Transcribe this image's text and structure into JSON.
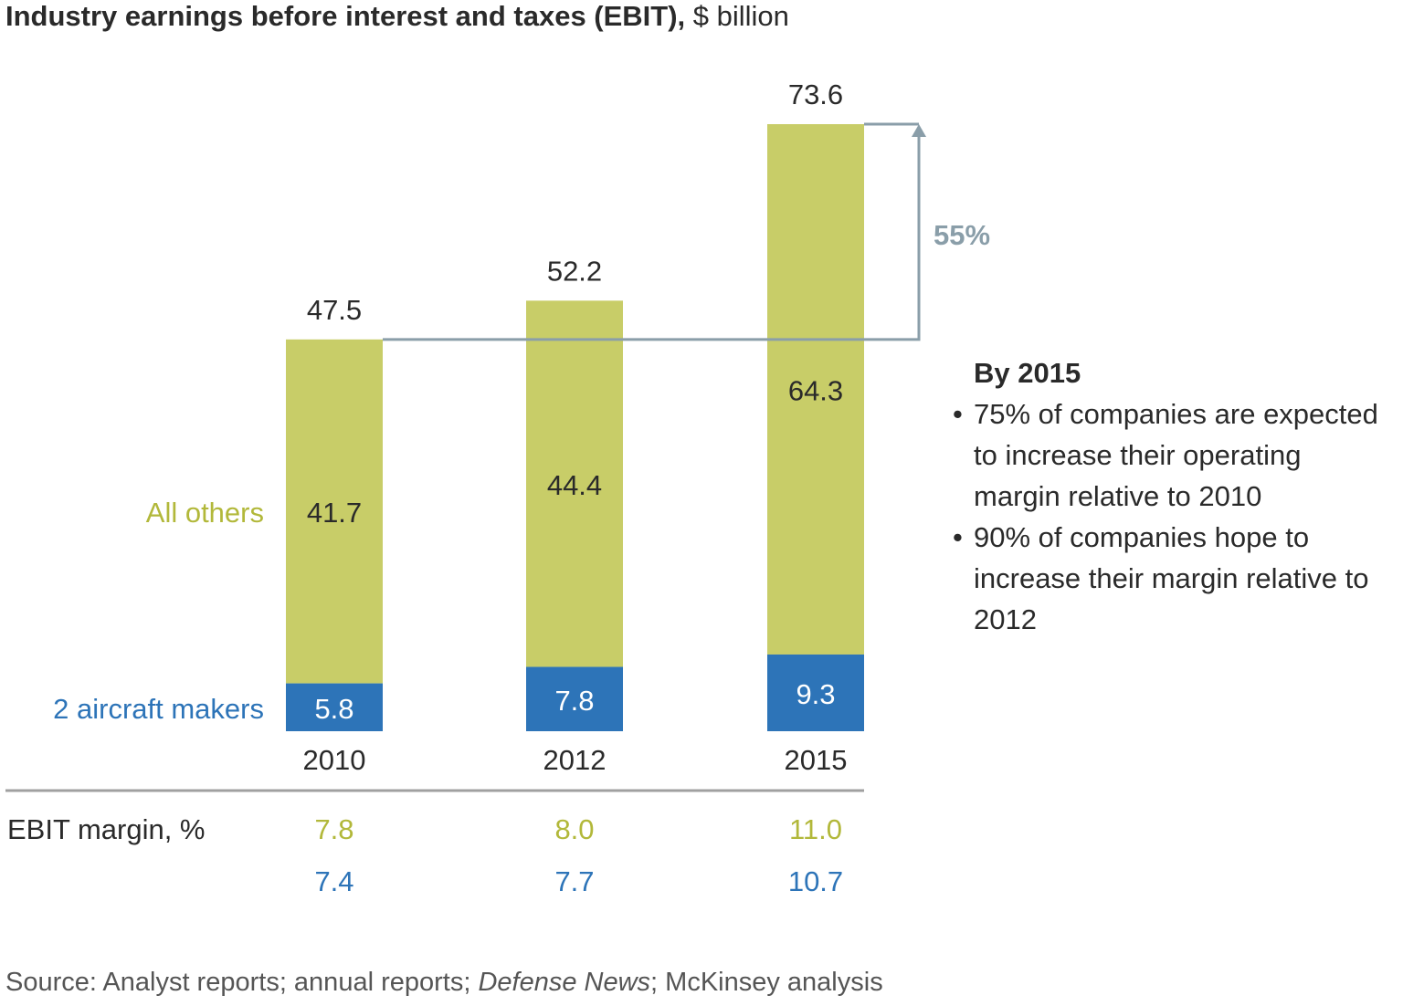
{
  "title": {
    "bold": "Industry earnings before interest and taxes (EBIT),",
    "unit": " $ billion"
  },
  "colors": {
    "others": "#c8cd68",
    "aircraft": "#2d74b8",
    "others_text": "#b2b83a",
    "aircraft_text": "#2d74b8",
    "arrow": "#8a9ea9",
    "text": "#2a2a2a",
    "divider": "#a0a0a0"
  },
  "chart_data": {
    "type": "bar",
    "stacked": true,
    "title": "Industry earnings before interest and taxes (EBIT), $ billion",
    "categories": [
      "2010",
      "2012",
      "2015"
    ],
    "series": [
      {
        "name": "2 aircraft makers",
        "values": [
          5.8,
          7.8,
          9.3
        ]
      },
      {
        "name": "All others",
        "values": [
          41.7,
          44.4,
          64.3
        ]
      }
    ],
    "totals": [
      47.5,
      52.2,
      73.6
    ],
    "ylim": [
      0,
      73.6
    ],
    "grid": false,
    "legend": "left",
    "annotation": {
      "label": "55%",
      "from_category": "2010",
      "to_category": "2015",
      "description": "growth from 2010 total to 2015 total"
    },
    "ebit_margin": {
      "label": "EBIT margin, %",
      "others": [
        "7.8",
        "8.0",
        "11.0"
      ],
      "aircraft": [
        "7.4",
        "7.7",
        "10.7"
      ]
    }
  },
  "side_note": {
    "heading": "By 2015",
    "bullets": [
      "75% of companies are expected to increase their operating margin relative to 2010",
      "90% of companies hope to increase their margin relative to 2012"
    ]
  },
  "source": {
    "prefix": "Source: Analyst reports; annual reports; ",
    "italic": "Defense News",
    "suffix": "; McKinsey analysis"
  }
}
